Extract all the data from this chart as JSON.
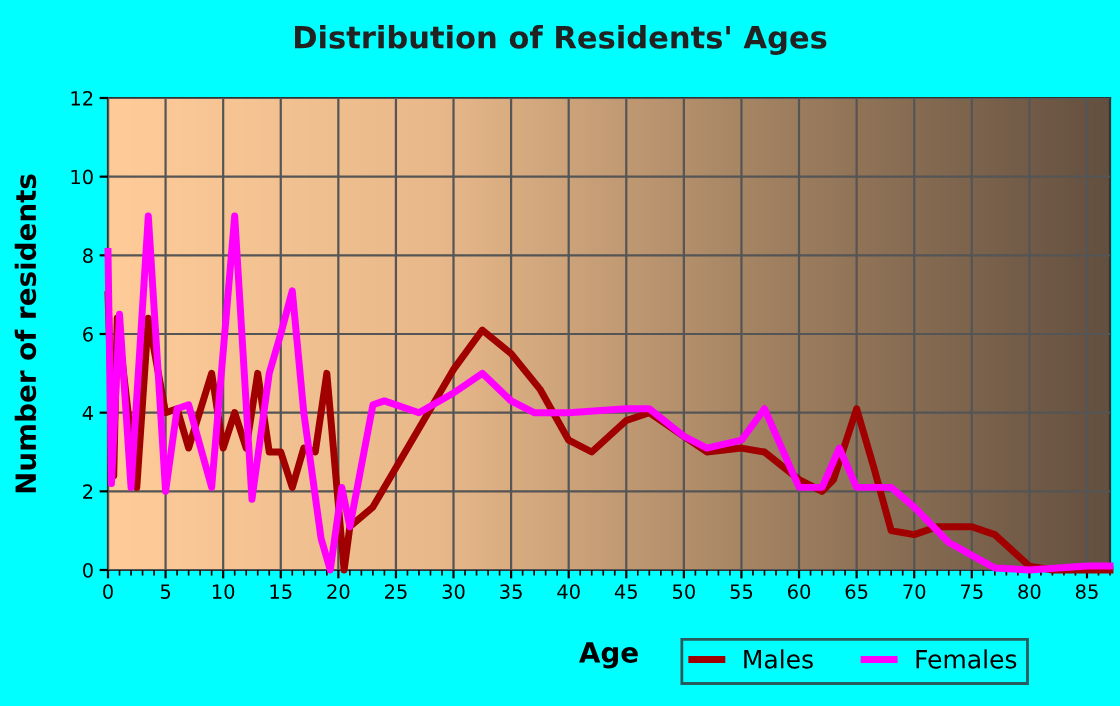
{
  "chart_data": {
    "type": "line",
    "title": "Distribution of Residents' Ages",
    "xlabel": "Age",
    "ylabel": "Number of residents",
    "xlim": [
      0,
      87
    ],
    "ylim": [
      0,
      12
    ],
    "xticks": [
      0,
      5,
      10,
      15,
      20,
      25,
      30,
      35,
      40,
      45,
      50,
      55,
      60,
      65,
      70,
      75,
      80,
      85
    ],
    "yticks": [
      0,
      2,
      4,
      6,
      8,
      10,
      12
    ],
    "grid": true,
    "legend": "bottom right",
    "marker": "none",
    "line_style": "solid",
    "series": [
      {
        "name": "Males",
        "color": "#a00000",
        "x": [
          0,
          0.5,
          0.8,
          2.5,
          3.5,
          5,
          6,
          7,
          9,
          10,
          11,
          12,
          13,
          14,
          15,
          16,
          17,
          18,
          19,
          20.5,
          21,
          23,
          25,
          30,
          32.5,
          35,
          37.5,
          40,
          42,
          45,
          47,
          50,
          52,
          55,
          57,
          60,
          62,
          63,
          65,
          66.5,
          68,
          70,
          72,
          75,
          77,
          80,
          82,
          87
        ],
        "values": [
          7,
          2.4,
          6.4,
          2.1,
          6.4,
          4,
          4.1,
          3.1,
          5,
          3.1,
          4,
          3.1,
          5,
          3,
          3,
          2.1,
          3.1,
          3,
          5,
          0,
          1.1,
          1.6,
          2.6,
          5.1,
          6.1,
          5.5,
          4.6,
          3.3,
          3.0,
          3.8,
          4.0,
          3.4,
          3.0,
          3.1,
          3.0,
          2.3,
          2.0,
          2.3,
          4.1,
          2.6,
          1.0,
          0.9,
          1.1,
          1.1,
          0.9,
          0.1,
          0,
          0
        ]
      },
      {
        "name": "Females",
        "color": "#ff00ff",
        "x": [
          0,
          0.3,
          1,
          2,
          3.5,
          5,
          6,
          7,
          9,
          11,
          12.5,
          14,
          15,
          16,
          17,
          18.5,
          19.3,
          20.3,
          21,
          23,
          24,
          27,
          30,
          32.5,
          35,
          37,
          40,
          45,
          47,
          50,
          52,
          55,
          57,
          60,
          62,
          63.5,
          65,
          66.5,
          68,
          70,
          73,
          77,
          80,
          85,
          87
        ],
        "values": [
          8.1,
          2.2,
          6.5,
          2.1,
          9,
          2,
          4.1,
          4.2,
          2.1,
          9,
          1.8,
          5,
          6,
          7.1,
          4,
          0.8,
          0,
          2.1,
          1.1,
          4.2,
          4.3,
          4.0,
          4.5,
          5.0,
          4.3,
          4.0,
          4.0,
          4.1,
          4.1,
          3.4,
          3.1,
          3.3,
          4.1,
          2.1,
          2.1,
          3.1,
          2.1,
          2.1,
          2.1,
          1.6,
          0.7,
          0.05,
          0,
          0.1,
          0.1
        ]
      }
    ]
  }
}
